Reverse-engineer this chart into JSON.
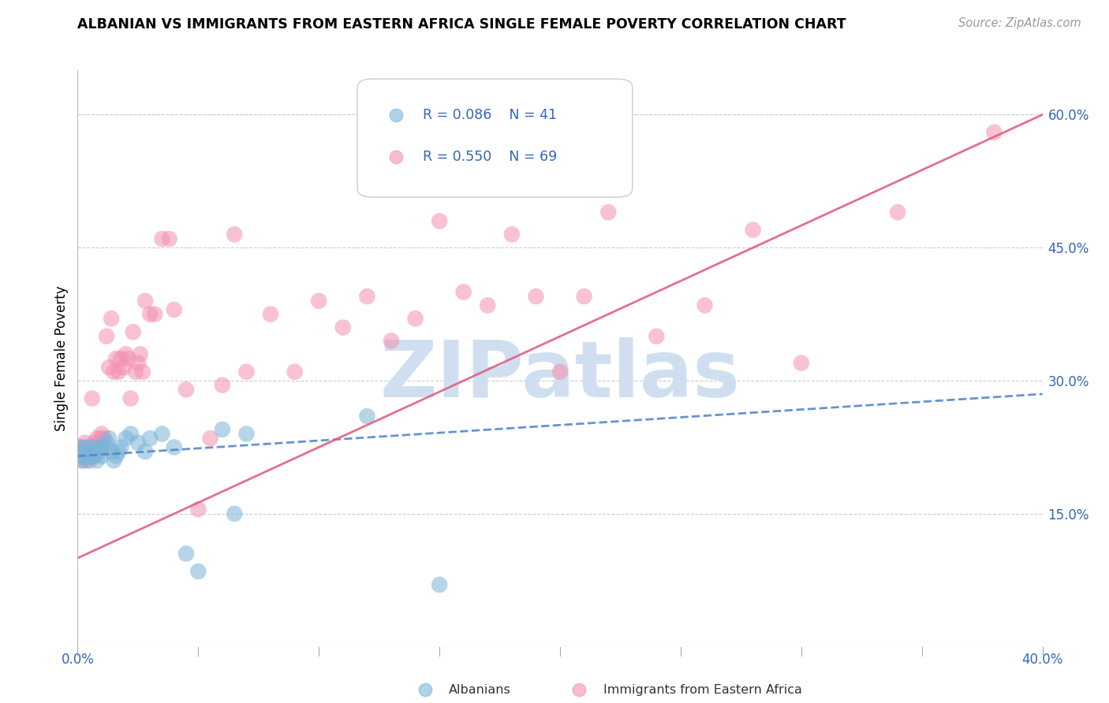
{
  "title": "ALBANIAN VS IMMIGRANTS FROM EASTERN AFRICA SINGLE FEMALE POVERTY CORRELATION CHART",
  "source": "Source: ZipAtlas.com",
  "ylabel": "Single Female Poverty",
  "xlim": [
    0.0,
    0.4
  ],
  "ylim": [
    0.0,
    0.65
  ],
  "ytick_positions": [
    0.15,
    0.3,
    0.45,
    0.6
  ],
  "ytick_labels": [
    "15.0%",
    "30.0%",
    "45.0%",
    "60.0%"
  ],
  "blue_R": 0.086,
  "blue_N": 41,
  "pink_R": 0.55,
  "pink_N": 69,
  "blue_color": "#7ab4d8",
  "pink_color": "#f490b0",
  "blue_line_color": "#5588cc",
  "pink_line_color": "#e06080",
  "watermark": "ZIPatlas",
  "watermark_color": "#d0dff0",
  "legend_R_color": "#3366bb",
  "albanians_x": [
    0.001,
    0.001,
    0.002,
    0.002,
    0.003,
    0.003,
    0.004,
    0.004,
    0.005,
    0.005,
    0.006,
    0.006,
    0.007,
    0.007,
    0.008,
    0.008,
    0.009,
    0.01,
    0.01,
    0.011,
    0.012,
    0.013,
    0.014,
    0.015,
    0.016,
    0.017,
    0.018,
    0.02,
    0.022,
    0.025,
    0.028,
    0.03,
    0.035,
    0.04,
    0.045,
    0.05,
    0.06,
    0.065,
    0.07,
    0.12,
    0.15
  ],
  "albanians_y": [
    0.225,
    0.215,
    0.22,
    0.21,
    0.225,
    0.215,
    0.22,
    0.21,
    0.215,
    0.22,
    0.225,
    0.215,
    0.22,
    0.215,
    0.225,
    0.21,
    0.22,
    0.215,
    0.225,
    0.225,
    0.23,
    0.235,
    0.22,
    0.21,
    0.215,
    0.22,
    0.225,
    0.235,
    0.24,
    0.23,
    0.22,
    0.235,
    0.24,
    0.225,
    0.105,
    0.085,
    0.245,
    0.15,
    0.24,
    0.26,
    0.07
  ],
  "eastern_africa_x": [
    0.001,
    0.001,
    0.002,
    0.002,
    0.003,
    0.003,
    0.004,
    0.004,
    0.005,
    0.005,
    0.006,
    0.006,
    0.007,
    0.007,
    0.008,
    0.008,
    0.009,
    0.01,
    0.01,
    0.011,
    0.012,
    0.013,
    0.014,
    0.015,
    0.016,
    0.017,
    0.018,
    0.019,
    0.02,
    0.021,
    0.022,
    0.023,
    0.024,
    0.025,
    0.026,
    0.027,
    0.028,
    0.03,
    0.032,
    0.035,
    0.038,
    0.04,
    0.045,
    0.05,
    0.055,
    0.06,
    0.065,
    0.07,
    0.08,
    0.09,
    0.1,
    0.11,
    0.12,
    0.13,
    0.14,
    0.15,
    0.16,
    0.17,
    0.18,
    0.19,
    0.2,
    0.21,
    0.22,
    0.24,
    0.26,
    0.28,
    0.3,
    0.34,
    0.38
  ],
  "eastern_africa_y": [
    0.225,
    0.215,
    0.22,
    0.21,
    0.23,
    0.215,
    0.22,
    0.225,
    0.21,
    0.215,
    0.28,
    0.225,
    0.215,
    0.23,
    0.235,
    0.225,
    0.23,
    0.235,
    0.24,
    0.235,
    0.35,
    0.315,
    0.37,
    0.31,
    0.325,
    0.31,
    0.325,
    0.315,
    0.33,
    0.325,
    0.28,
    0.355,
    0.31,
    0.32,
    0.33,
    0.31,
    0.39,
    0.375,
    0.375,
    0.46,
    0.46,
    0.38,
    0.29,
    0.155,
    0.235,
    0.295,
    0.465,
    0.31,
    0.375,
    0.31,
    0.39,
    0.36,
    0.395,
    0.345,
    0.37,
    0.48,
    0.4,
    0.385,
    0.465,
    0.395,
    0.31,
    0.395,
    0.49,
    0.35,
    0.385,
    0.47,
    0.32,
    0.49,
    0.58
  ],
  "blue_line_x": [
    0.0,
    0.4
  ],
  "blue_line_y": [
    0.215,
    0.285
  ],
  "pink_line_x": [
    0.0,
    0.4
  ],
  "pink_line_y": [
    0.1,
    0.6
  ]
}
